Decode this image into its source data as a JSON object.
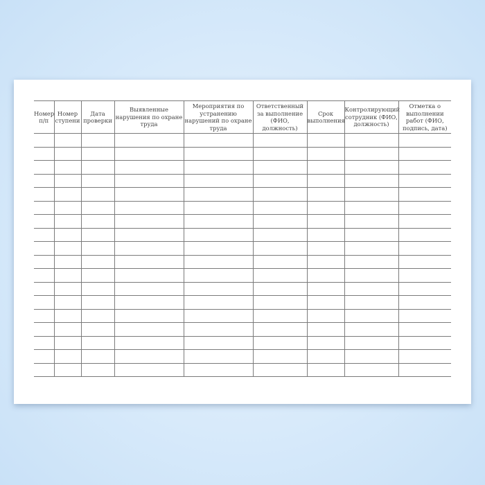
{
  "table": {
    "headers": [
      "Номер п/п",
      "Номер ступени",
      "Дата проверки",
      "Выявленные нарушения по охране труда",
      "Мероприятия по устранению нарушений по охране труда",
      "Ответственный за выполнение (ФИО, должность)",
      "Срок выполнения",
      "Контролирующий сотрудник (ФИО, должность)",
      "Отметка о выполнении работ (ФИО, подпись, дата)"
    ],
    "empty_rows": 18
  }
}
